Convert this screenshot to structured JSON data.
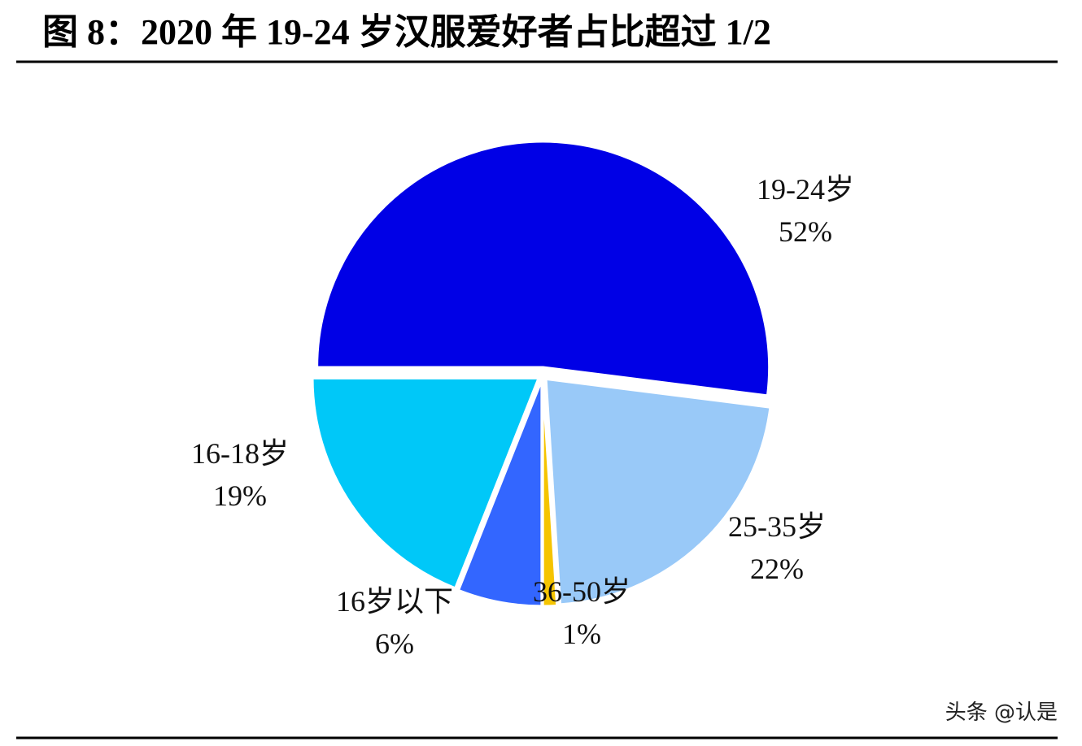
{
  "chart_data": {
    "type": "pie",
    "title": "图 8：2020 年 19-24 岁汉服爱好者占比超过 1/2",
    "categories": [
      "19-24岁",
      "25-35岁",
      "36-50岁",
      "16岁以下",
      "16-18岁"
    ],
    "values": [
      52,
      22,
      1,
      6,
      19
    ],
    "value_labels": [
      "52%",
      "22%",
      "1%",
      "6%",
      "19%"
    ],
    "colors": [
      "#0000e6",
      "#99c9f8",
      "#f5c400",
      "#3366ff",
      "#00c8f8"
    ],
    "watermark": "头条 @认是"
  }
}
